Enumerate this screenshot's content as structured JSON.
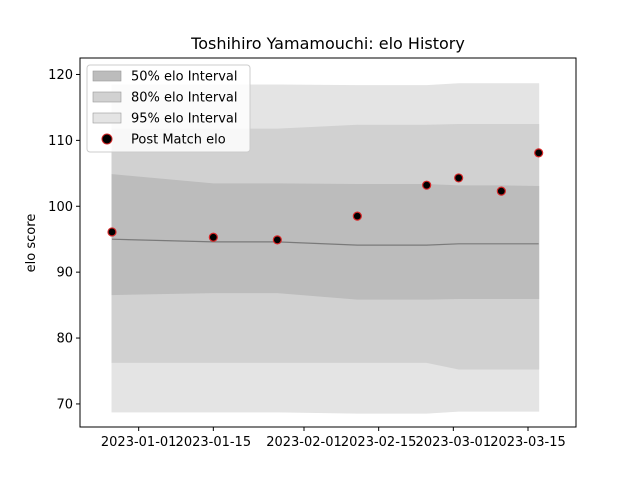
{
  "chart_data": {
    "type": "line",
    "title": "Toshihiro Yamamouchi: elo History",
    "xlabel": "",
    "ylabel": "elo score",
    "xlim": [
      "2022-12-21",
      "2023-03-24"
    ],
    "ylim": [
      66.5,
      122.5
    ],
    "y_ticks": [
      70,
      80,
      90,
      100,
      110,
      120
    ],
    "x_ticks": [
      "2023-01-01",
      "2023-01-15",
      "2023-02-01",
      "2023-02-15",
      "2023-03-01",
      "2023-03-15"
    ],
    "grid": false,
    "legend_position": "top-left",
    "x": [
      "2022-12-27",
      "2023-01-15",
      "2023-01-27",
      "2023-02-11",
      "2023-02-24",
      "2023-03-02",
      "2023-03-10",
      "2023-03-17"
    ],
    "series": [
      {
        "name": "95% elo Interval",
        "kind": "band",
        "color": "#e4e4e4",
        "lower": [
          68.8,
          68.8,
          68.8,
          68.6,
          68.6,
          68.9,
          68.9,
          68.9
        ],
        "upper": [
          118.4,
          118.4,
          118.4,
          118.3,
          118.3,
          118.6,
          118.6,
          118.6
        ]
      },
      {
        "name": "80% elo Interval",
        "kind": "band",
        "color": "#d1d1d1",
        "lower": [
          76.3,
          76.3,
          76.3,
          76.3,
          76.3,
          75.3,
          75.3,
          75.3
        ],
        "upper": [
          111.7,
          111.7,
          111.7,
          112.3,
          112.3,
          112.4,
          112.4,
          112.4
        ]
      },
      {
        "name": "50% elo Interval",
        "kind": "band",
        "color": "#bcbcbc",
        "lower": [
          86.6,
          86.9,
          86.9,
          85.9,
          85.9,
          86.0,
          86.0,
          86.0
        ],
        "upper": [
          104.8,
          103.4,
          103.4,
          103.3,
          103.3,
          103.1,
          103.1,
          103.0
        ]
      },
      {
        "name": "",
        "kind": "line",
        "color": "#7a7a7a",
        "values": [
          95.0,
          94.6,
          94.6,
          94.1,
          94.1,
          94.3,
          94.3,
          94.3
        ]
      }
    ],
    "points": {
      "name": "Post Match elo",
      "fill": "#000000",
      "edge": "#d62728",
      "x": [
        "2022-12-27",
        "2023-01-15",
        "2023-01-27",
        "2023-02-11",
        "2023-02-24",
        "2023-03-02",
        "2023-03-10",
        "2023-03-17"
      ],
      "values": [
        96.1,
        95.3,
        94.9,
        98.5,
        103.2,
        104.3,
        102.3,
        108.1
      ]
    },
    "legend": [
      "50% elo Interval",
      "80% elo Interval",
      "95% elo Interval",
      "Post Match elo"
    ]
  }
}
